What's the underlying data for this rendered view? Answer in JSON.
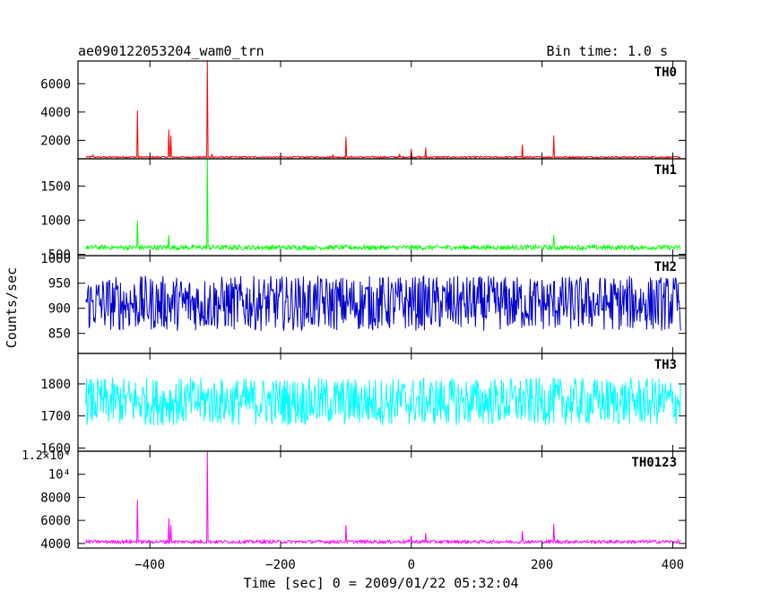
{
  "chart_data": {
    "type": "line",
    "title": "ae090122053204_wam0_trn",
    "subtitle": "Bin time: 1.0 s",
    "xlabel": "Time [sec] 0 = 2009/01/22 05:32:04",
    "ylabel": "Counts/sec",
    "xlim": [
      -510,
      420
    ],
    "xticks": [
      -400,
      -200,
      0,
      200,
      400
    ],
    "xtick_labels": [
      "−400",
      "−200",
      "0",
      "200",
      "400"
    ],
    "grid": false,
    "panels": [
      {
        "name": "TH0",
        "color": "#ff0000",
        "ylim": [
          700,
          7600
        ],
        "yticks": [
          2000,
          4000,
          6000
        ],
        "ytick_labels": [
          "2000",
          "4000",
          "6000"
        ],
        "baseline": 820,
        "noise": 55,
        "spikes": [
          [
            -487,
            970
          ],
          [
            -419,
            4100
          ],
          [
            -371,
            2750
          ],
          [
            -368,
            2350
          ],
          [
            -312,
            7600
          ],
          [
            -305,
            1050
          ],
          [
            -120,
            1000
          ],
          [
            -100,
            2250
          ],
          [
            -18,
            1050
          ],
          [
            0,
            1400
          ],
          [
            22,
            1500
          ],
          [
            170,
            1700
          ],
          [
            218,
            2350
          ]
        ]
      },
      {
        "name": "TH1",
        "color": "#00ff00",
        "ylim": [
          480,
          1900
        ],
        "yticks": [
          500,
          1000,
          1500
        ],
        "ytick_labels": [
          "500",
          "1000",
          "1500"
        ],
        "baseline": 600,
        "noise": 35,
        "spikes": [
          [
            -419,
            1000
          ],
          [
            -371,
            780
          ],
          [
            -312,
            1920
          ],
          [
            218,
            780
          ]
        ]
      },
      {
        "name": "TH2",
        "color": "#0000cc",
        "ylim": [
          810,
          1005
        ],
        "yticks": [
          850,
          900,
          950,
          1000
        ],
        "ytick_labels": [
          "850",
          "900",
          "950",
          "1000"
        ],
        "baseline": 910,
        "noise": 55,
        "spikes": []
      },
      {
        "name": "TH3",
        "color": "#00ffff",
        "ylim": [
          1590,
          1895
        ],
        "yticks": [
          1600,
          1700,
          1800
        ],
        "ytick_labels": [
          "1600",
          "1700",
          "1800"
        ],
        "baseline": 1745,
        "noise": 75,
        "spikes": []
      },
      {
        "name": "TH0123",
        "color": "#ff00ff",
        "ylim": [
          3600,
          12000
        ],
        "yticks": [
          4000,
          6000,
          8000,
          10000
        ],
        "ytick_labels": [
          "4000",
          "6000",
          "8000",
          "10⁴"
        ],
        "extra_tick_label": "1.2×10⁴",
        "baseline": 4150,
        "noise": 140,
        "spikes": [
          [
            -419,
            7800
          ],
          [
            -371,
            6200
          ],
          [
            -368,
            5600
          ],
          [
            -312,
            12000
          ],
          [
            -100,
            5600
          ],
          [
            0,
            4700
          ],
          [
            22,
            4900
          ],
          [
            170,
            5100
          ],
          [
            218,
            5700
          ]
        ]
      }
    ]
  }
}
